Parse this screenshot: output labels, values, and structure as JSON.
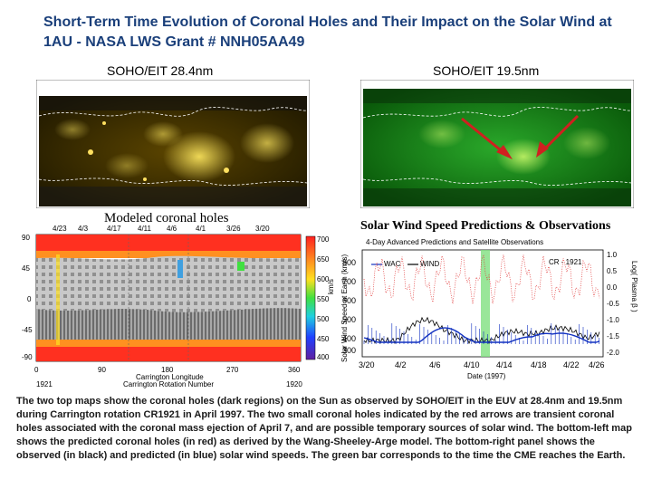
{
  "title": "Short-Term Time Evolution of Coronal Holes and Their Impact on the Solar Wind at 1AU - NASA LWS Grant # NNH05AA49",
  "panels": {
    "eit284_label": "SOHO/EIT 28.4nm",
    "eit195_label": "SOHO/EIT 19.5nm",
    "modeled_label": "Modeled coronal holes",
    "speed_label": "Solar Wind Speed Predictions & Observations"
  },
  "model_map": {
    "top_dates": [
      "4/23",
      "4/3",
      "4/17",
      "4/11",
      "4/6",
      "4/1",
      "3/26",
      "3/20"
    ],
    "x_ticks": [
      "0",
      "90",
      "180",
      "270",
      "360"
    ],
    "y_ticks": [
      "90",
      "45",
      "0",
      "-45",
      "-90"
    ],
    "x_label": "Carrington Longitude",
    "x_sublabel": "Carrington Rotation Number",
    "rot_left": "1921",
    "rot_right": "1920",
    "colorbar_ticks": [
      "700",
      "650",
      "600",
      "550",
      "500",
      "450",
      "400"
    ],
    "colorbar_label": "km/s"
  },
  "speed_chart": {
    "subtitle": "4-Day Advanced Predictions and Satellite Observations",
    "legend": [
      "WAC",
      "WIND"
    ],
    "cr_label": "CR - 1921",
    "y_label": "Solar Wind Speed at Earth (km/s)",
    "y_ticks": [
      "800",
      "700",
      "600",
      "500",
      "400",
      "300"
    ],
    "y2_label": "Log( Plasma β )",
    "y2_ticks": [
      "1.0",
      "0.5",
      "0.0",
      "-0.5",
      "-1.0",
      "-1.5",
      "-2.0"
    ],
    "x_ticks": [
      "3/20",
      "4/2",
      "4/6",
      "4/10",
      "4/14",
      "4/18",
      "4/22",
      "4/26"
    ],
    "x_label": "Date (1997)"
  },
  "caption": "The two top maps show the coronal holes (dark regions) on the Sun as observed by SOHO/EIT in the EUV at 28.4nm and 19.5nm during Carrington rotation CR1921 in April 1997. The two small coronal holes indicated by the red arrows are transient coronal holes associated with the coronal mass ejection of April 7, and are possible temporary sources of solar wind. The bottom-left map shows the predicted coronal holes (in red) as derived by the Wang-Sheeley-Arge model. The bottom-right panel shows the observed (in black) and predicted (in blue) solar wind speeds. The green bar corresponds to the time the CME reaches the Earth.",
  "colors": {
    "title": "#1a3f7a",
    "eit284_base": "#2a2200",
    "eit195_base": "#0f6a0f",
    "arrow": "#d02020",
    "observed": "#000000",
    "predicted": "#1030c0",
    "cme_bar": "#80e080"
  }
}
